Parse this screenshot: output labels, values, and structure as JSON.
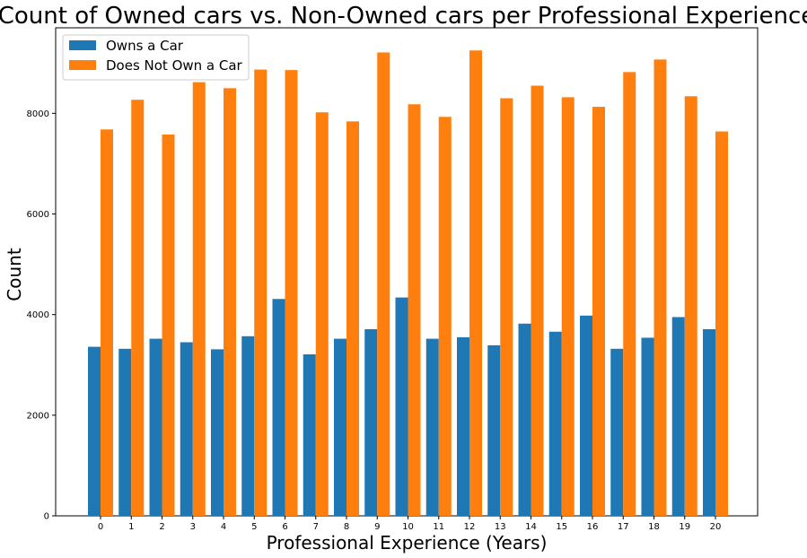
{
  "chart_data": {
    "type": "bar",
    "title": "Count of Owned cars vs. Non-Owned cars per Professional Experience",
    "xlabel": "Professional Experience (Years)",
    "ylabel": "Count",
    "categories": [
      "0",
      "1",
      "2",
      "3",
      "4",
      "5",
      "6",
      "7",
      "8",
      "9",
      "10",
      "11",
      "12",
      "13",
      "14",
      "15",
      "16",
      "17",
      "18",
      "19",
      "20"
    ],
    "series": [
      {
        "name": "Owns a Car",
        "color": "#1f77b4",
        "values": [
          3360,
          3320,
          3520,
          3450,
          3310,
          3570,
          4310,
          3210,
          3520,
          3710,
          4340,
          3520,
          3550,
          3390,
          3820,
          3660,
          3980,
          3320,
          3540,
          3950,
          3710
        ]
      },
      {
        "name": "Does Not Own a Car",
        "color": "#ff7f0e",
        "values": [
          7680,
          8270,
          7580,
          8620,
          8500,
          8870,
          8860,
          8020,
          7840,
          9210,
          8180,
          7930,
          9250,
          8300,
          8550,
          8320,
          8130,
          8820,
          9070,
          8340,
          7640
        ]
      }
    ],
    "yticks": [
      0,
      2000,
      4000,
      6000,
      8000
    ],
    "ylim": [
      0,
      9700
    ],
    "legend_position": "top-left",
    "grid": false
  }
}
